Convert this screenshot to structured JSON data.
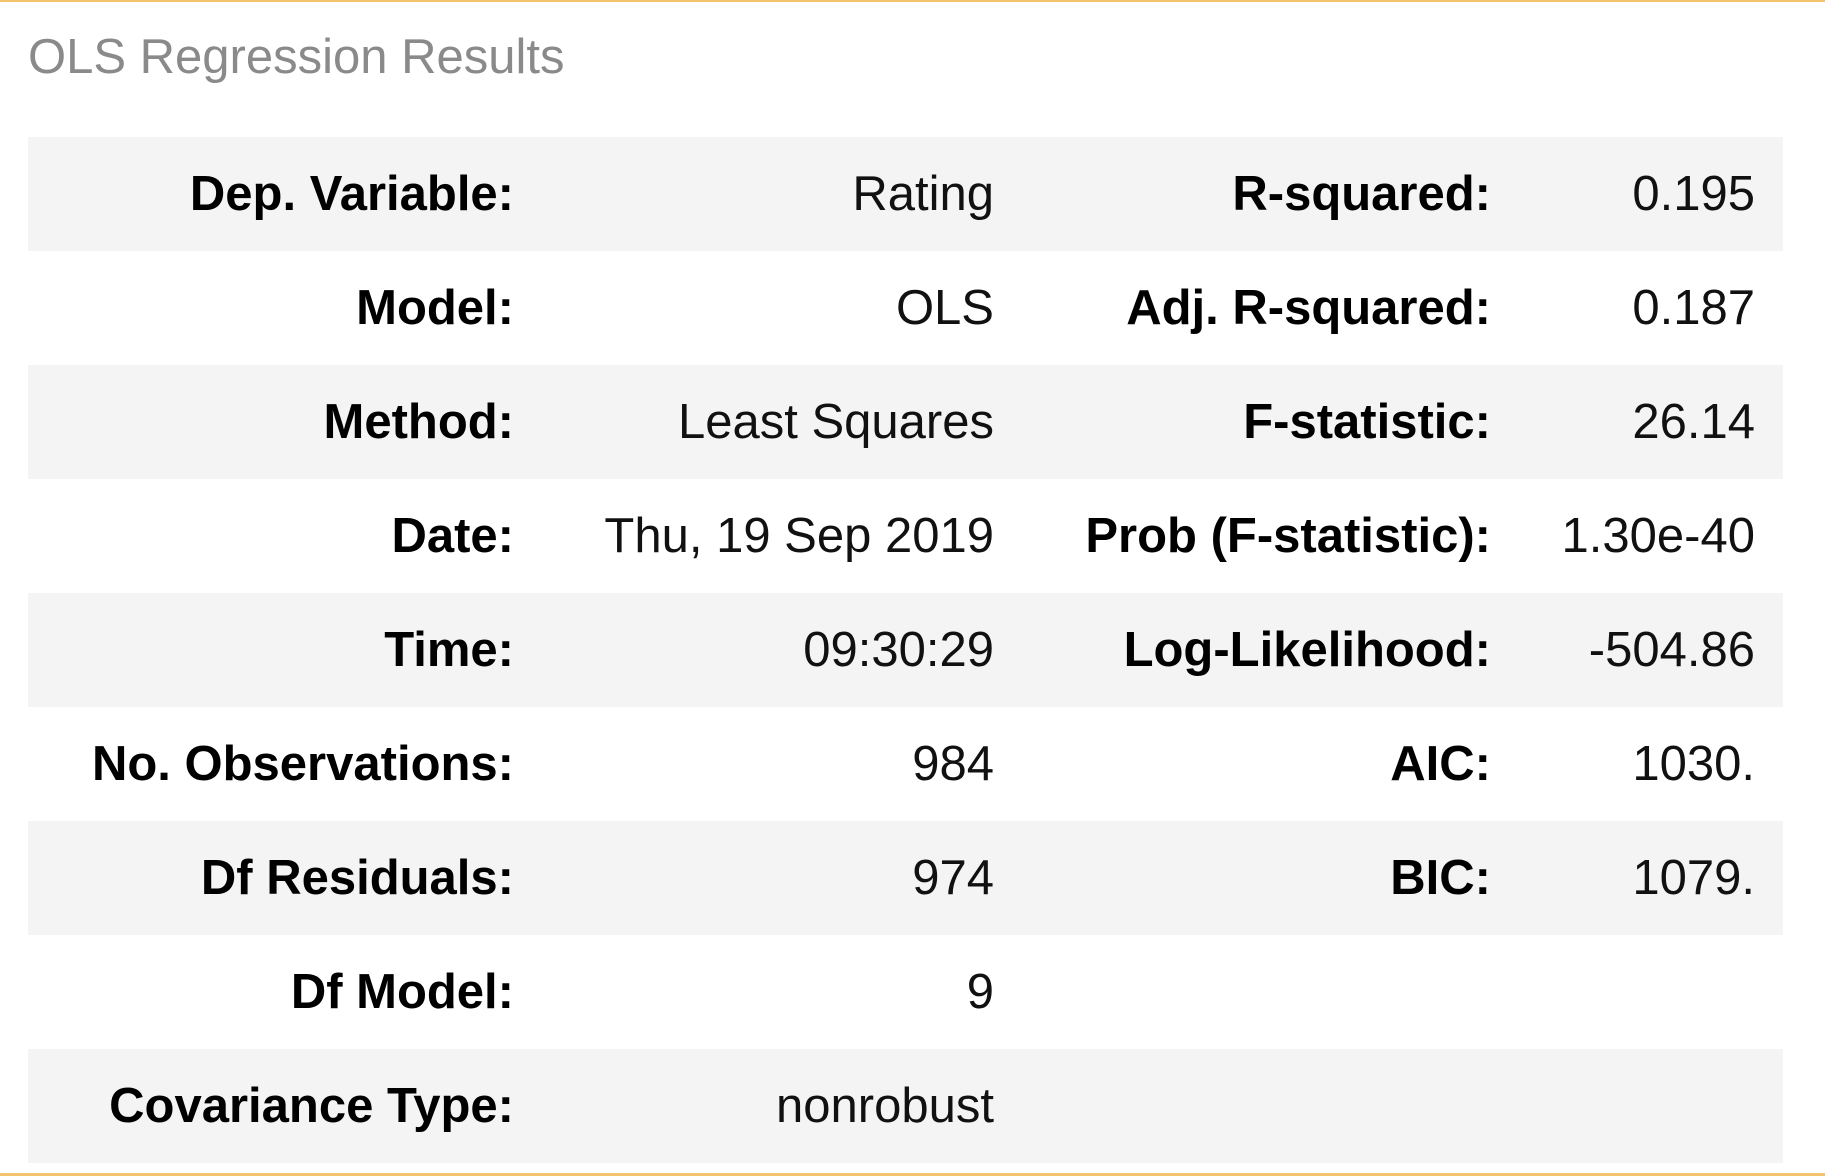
{
  "caption": "OLS Regression Results",
  "rows": [
    {
      "label_left": "Dep. Variable:",
      "value_left": "Rating",
      "label_right": "R-squared:",
      "value_right": "0.195"
    },
    {
      "label_left": "Model:",
      "value_left": "OLS",
      "label_right": "Adj. R-squared:",
      "value_right": "0.187"
    },
    {
      "label_left": "Method:",
      "value_left": "Least Squares",
      "label_right": "F-statistic:",
      "value_right": "26.14"
    },
    {
      "label_left": "Date:",
      "value_left": "Thu, 19 Sep 2019",
      "label_right": "Prob (F-statistic):",
      "value_right": "1.30e-40"
    },
    {
      "label_left": "Time:",
      "value_left": "09:30:29",
      "label_right": "Log-Likelihood:",
      "value_right": "-504.86"
    },
    {
      "label_left": "No. Observations:",
      "value_left": "984",
      "label_right": "AIC:",
      "value_right": "1030."
    },
    {
      "label_left": "Df Residuals:",
      "value_left": "974",
      "label_right": "BIC:",
      "value_right": "1079."
    },
    {
      "label_left": "Df Model:",
      "value_left": "9",
      "label_right": "",
      "value_right": ""
    },
    {
      "label_left": "Covariance Type:",
      "value_left": "nonrobust",
      "label_right": "",
      "value_right": ""
    }
  ],
  "colors": {
    "frame_border": "#f2c46d",
    "row_stripe": "#f4f4f4",
    "caption_text": "#8a8a8a"
  }
}
